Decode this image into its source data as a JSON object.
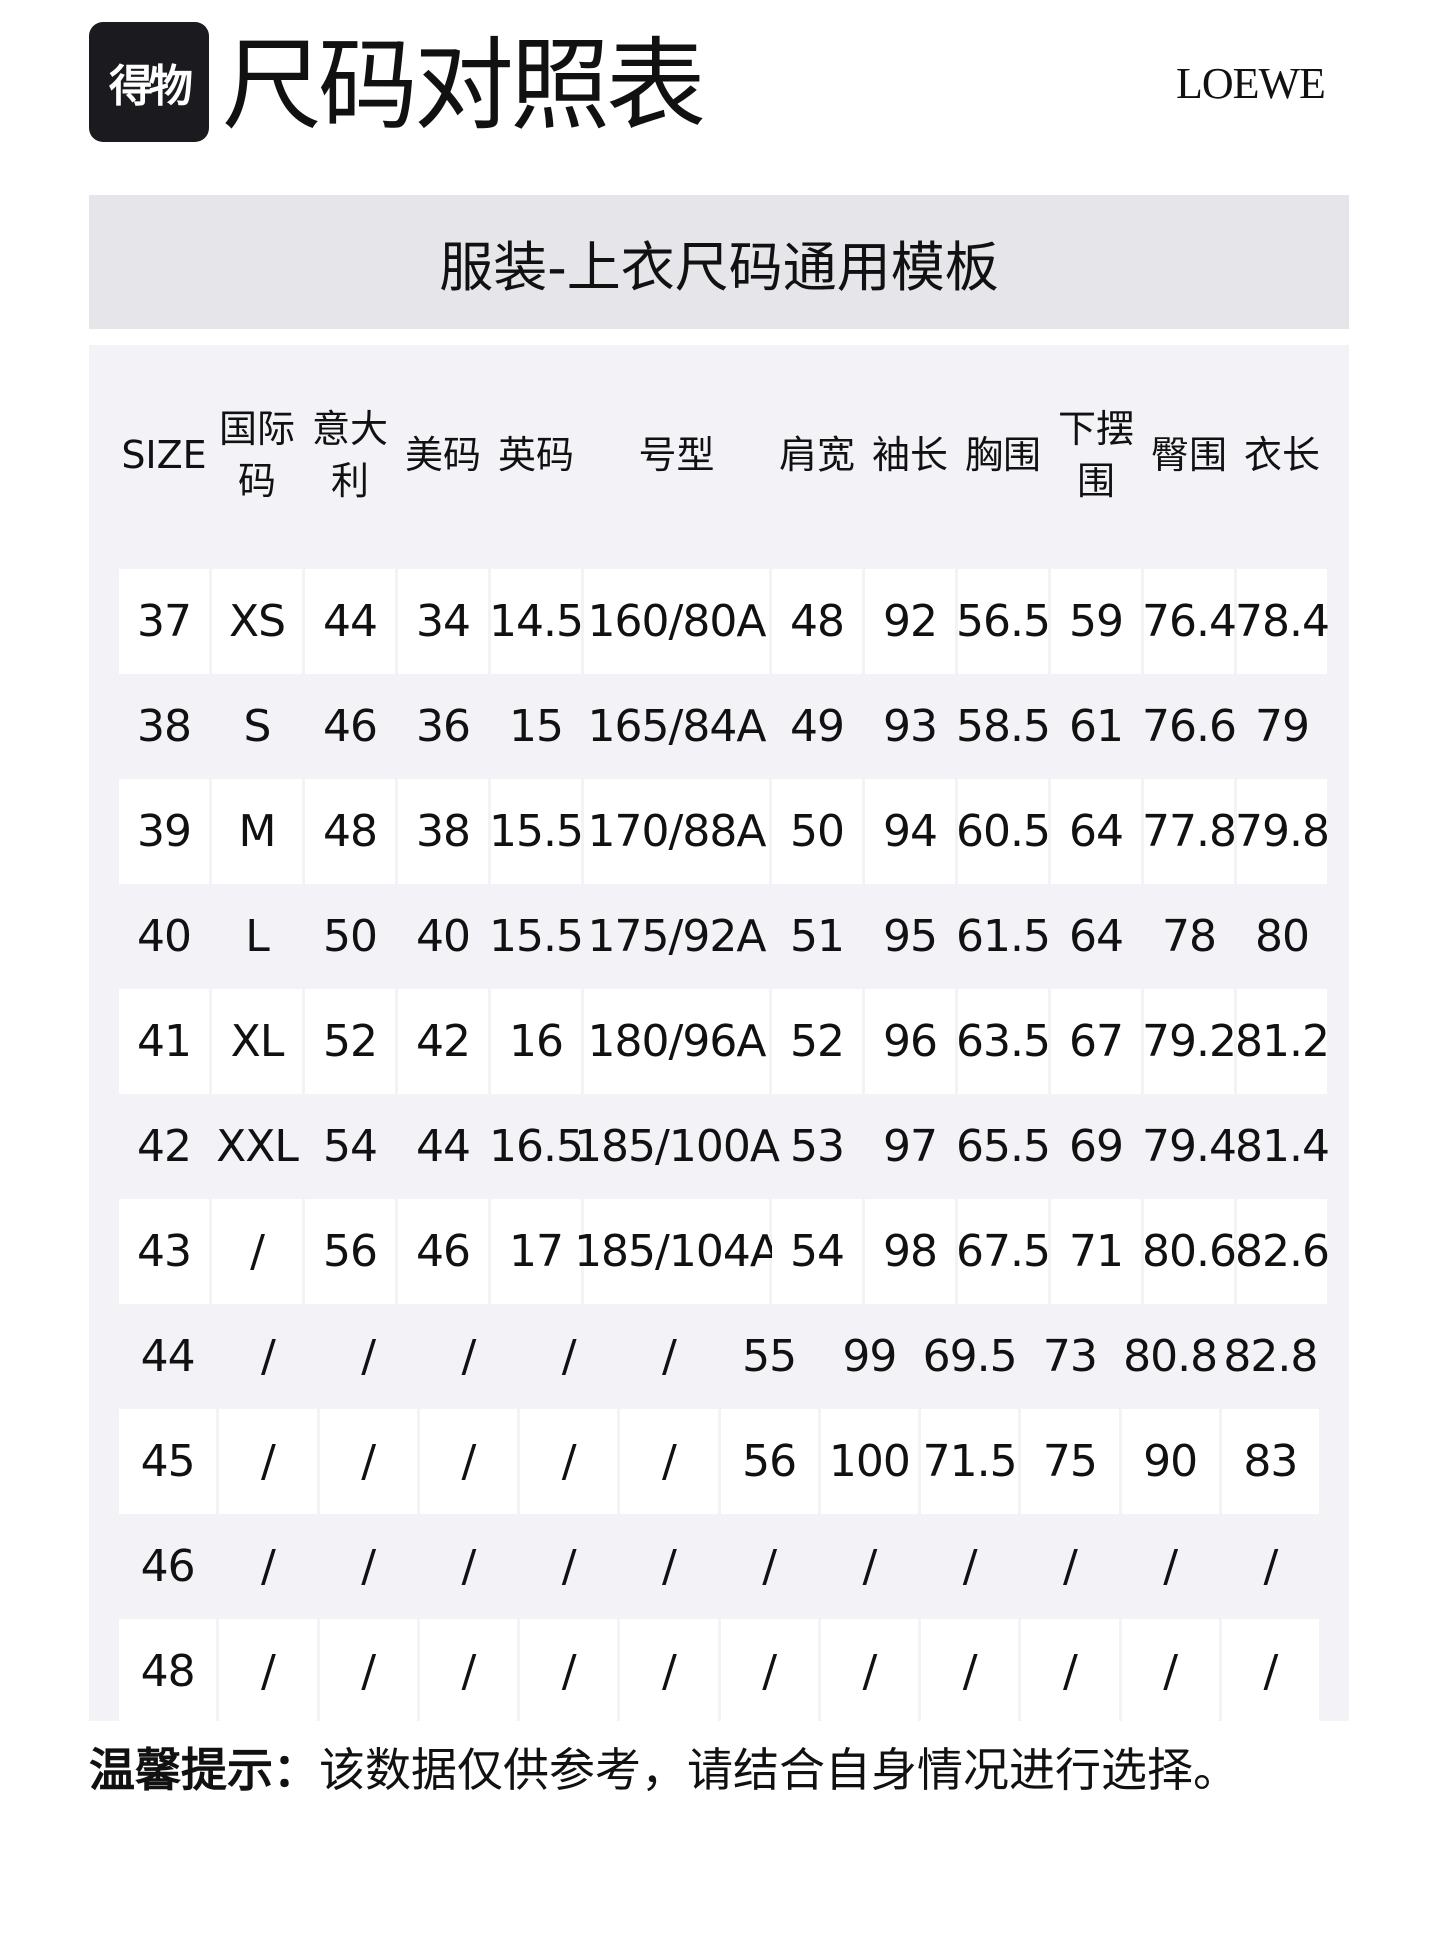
{
  "header": {
    "logo_text": "得物",
    "title": "尺码对照表",
    "brand": "LOEWE"
  },
  "banner": {
    "title": "服装-上衣尺码通用模板"
  },
  "table": {
    "columns": [
      "SIZE",
      "国际\n码",
      "意大\n利",
      "美码",
      "英码",
      "号型",
      "肩宽",
      "袖长",
      "胸围",
      "下摆\n围",
      "臀围",
      "衣长"
    ],
    "rows": [
      [
        "37",
        "XS",
        "44",
        "34",
        "14.5",
        "160/80A",
        "48",
        "92",
        "56.5",
        "59",
        "76.4",
        "78.4"
      ],
      [
        "38",
        "S",
        "46",
        "36",
        "15",
        "165/84A",
        "49",
        "93",
        "58.5",
        "61",
        "76.6",
        "79"
      ],
      [
        "39",
        "M",
        "48",
        "38",
        "15.5",
        "170/88A",
        "50",
        "94",
        "60.5",
        "64",
        "77.8",
        "79.8"
      ],
      [
        "40",
        "L",
        "50",
        "40",
        "15.5",
        "175/92A",
        "51",
        "95",
        "61.5",
        "64",
        "78",
        "80"
      ],
      [
        "41",
        "XL",
        "52",
        "42",
        "16",
        "180/96A",
        "52",
        "96",
        "63.5",
        "67",
        "79.2",
        "81.2"
      ],
      [
        "42",
        "XXL",
        "54",
        "44",
        "16.5",
        "185/100A",
        "53",
        "97",
        "65.5",
        "69",
        "79.4",
        "81.4"
      ],
      [
        "43",
        "/",
        "56",
        "46",
        "17",
        "185/104A",
        "54",
        "98",
        "67.5",
        "71",
        "80.6",
        "82.6"
      ],
      [
        "44",
        "/",
        "/",
        "/",
        "/",
        "/",
        "55",
        "99",
        "69.5",
        "73",
        "80.8",
        "82.8"
      ],
      [
        "45",
        "/",
        "/",
        "/",
        "/",
        "/",
        "56",
        "100",
        "71.5",
        "75",
        "90",
        "83"
      ],
      [
        "46",
        "/",
        "/",
        "/",
        "/",
        "/",
        "/",
        "/",
        "/",
        "/",
        "/",
        "/"
      ],
      [
        "48",
        "/",
        "/",
        "/",
        "/",
        "/",
        "/",
        "/",
        "/",
        "/",
        "/",
        "/"
      ]
    ]
  },
  "footer": {
    "label": "温馨提示：",
    "text": "该数据仅供参考，请结合自身情况进行选择。"
  },
  "colors": {
    "banner_bg": "#e5e5ea",
    "panel_bg": "#f3f3f7",
    "logo_bg": "#1b1b1f"
  }
}
